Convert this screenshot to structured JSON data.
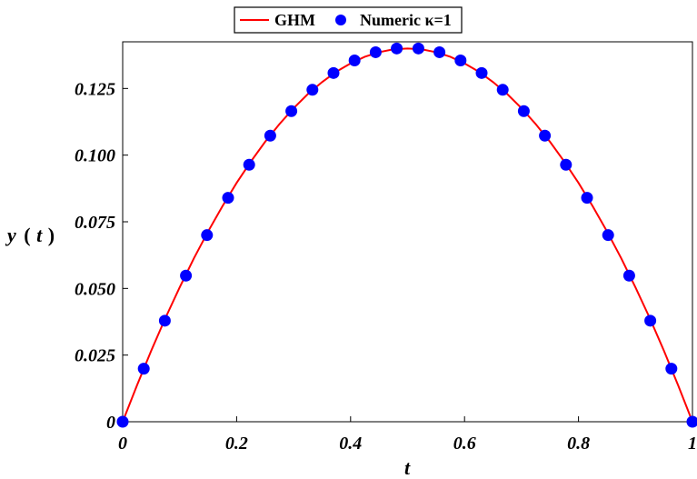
{
  "chart_data": {
    "type": "line",
    "title": "",
    "xlabel": "t",
    "ylabel": "y(t)",
    "ylabel_parts": [
      "y",
      "(",
      "t",
      ")"
    ],
    "xlim": [
      0,
      1
    ],
    "ylim": [
      0,
      0.1425
    ],
    "xticks": [
      0,
      0.2,
      0.4,
      0.6,
      0.8,
      1
    ],
    "xtick_labels": [
      "0",
      "0.2",
      "0.4",
      "0.6",
      "0.8",
      "1"
    ],
    "yticks": [
      0,
      0.025,
      0.05,
      0.075,
      0.1,
      0.125
    ],
    "ytick_labels": [
      "0",
      "0.025",
      "0.050",
      "0.075",
      "0.100",
      "0.125"
    ],
    "grid": false,
    "legend_position": "top-center",
    "series": [
      {
        "name": "GHM",
        "style": "line",
        "color": "#ff0000",
        "x": [
          0,
          0.025,
          0.05,
          0.075,
          0.1,
          0.125,
          0.15,
          0.175,
          0.2,
          0.225,
          0.25,
          0.275,
          0.3,
          0.325,
          0.35,
          0.375,
          0.4,
          0.425,
          0.45,
          0.475,
          0.5,
          0.525,
          0.55,
          0.575,
          0.6,
          0.625,
          0.65,
          0.675,
          0.7,
          0.725,
          0.75,
          0.775,
          0.8,
          0.825,
          0.85,
          0.875,
          0.9,
          0.925,
          0.95,
          0.975,
          1
        ],
        "y": [
          0,
          0.0136,
          0.0266,
          0.0389,
          0.0504,
          0.0613,
          0.0714,
          0.0808,
          0.0896,
          0.0976,
          0.105,
          0.1116,
          0.1176,
          0.1229,
          0.1274,
          0.1313,
          0.1344,
          0.1369,
          0.1386,
          0.1397,
          0.14,
          0.1397,
          0.1386,
          0.1369,
          0.1344,
          0.1313,
          0.1274,
          0.1229,
          0.1176,
          0.1116,
          0.105,
          0.0976,
          0.0896,
          0.0808,
          0.0714,
          0.0613,
          0.0504,
          0.0389,
          0.0266,
          0.0136,
          0
        ]
      },
      {
        "name": "Numeric κ=1",
        "style": "markers",
        "color": "#0000ff",
        "x": [
          0,
          0.037,
          0.074,
          0.111,
          0.148,
          0.185,
          0.222,
          0.259,
          0.296,
          0.333,
          0.37,
          0.407,
          0.444,
          0.481,
          0.519,
          0.556,
          0.593,
          0.63,
          0.667,
          0.704,
          0.741,
          0.778,
          0.815,
          0.852,
          0.889,
          0.926,
          0.963,
          1
        ],
        "y": [
          0,
          0.0199,
          0.0379,
          0.0548,
          0.07,
          0.084,
          0.0964,
          0.1073,
          0.1165,
          0.1245,
          0.1308,
          0.1355,
          0.1386,
          0.14,
          0.14,
          0.1386,
          0.1355,
          0.1308,
          0.1245,
          0.1165,
          0.1073,
          0.0964,
          0.084,
          0.07,
          0.0548,
          0.0379,
          0.0199,
          0
        ]
      }
    ]
  }
}
